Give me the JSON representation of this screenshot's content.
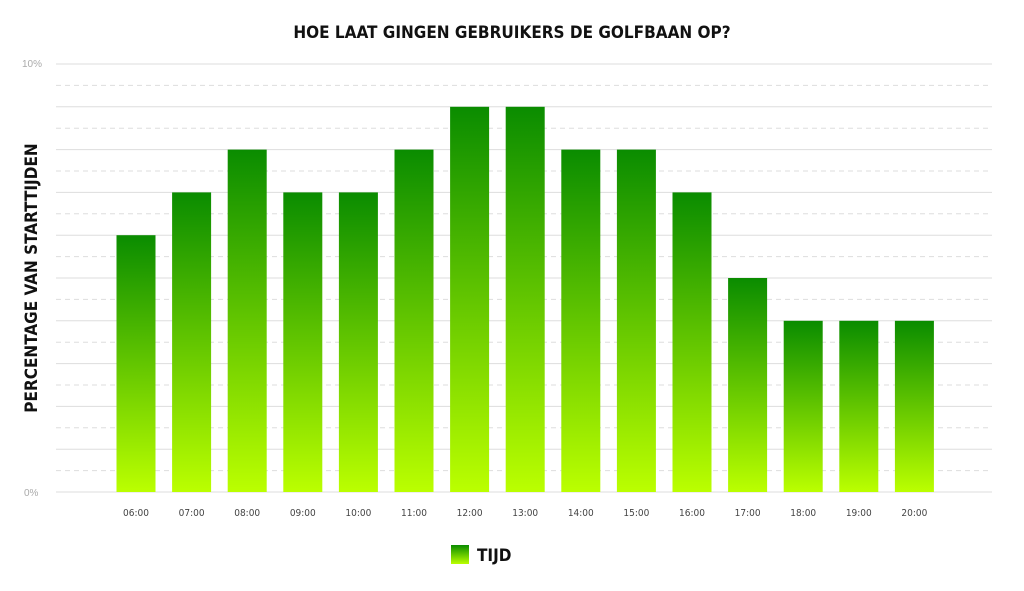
{
  "chart_data": {
    "type": "bar",
    "title": "HOE LAAT GINGEN GEBRUIKERS DE GOLFBAAN OP?",
    "ylabel": "PERCENTAGE VAN STARTTIJDEN",
    "xlabel": "",
    "ylim": [
      0,
      10
    ],
    "y_tick_labels": [
      "0%",
      "10%"
    ],
    "categories": [
      "06:00",
      "07:00",
      "08:00",
      "09:00",
      "10:00",
      "11:00",
      "12:00",
      "13:00",
      "14:00",
      "15:00",
      "16:00",
      "17:00",
      "18:00",
      "19:00",
      "20:00"
    ],
    "series": [
      {
        "name": "TIJD",
        "values": [
          6,
          7,
          8,
          7,
          7,
          8,
          9,
          9,
          8,
          8,
          7,
          5,
          4,
          4,
          4
        ]
      }
    ],
    "grid": true,
    "legend_position": "bottom-center",
    "colors": {
      "bar_top": "#0a8c00",
      "bar_bottom": "#bbff00",
      "grid": "#dddddd"
    }
  }
}
